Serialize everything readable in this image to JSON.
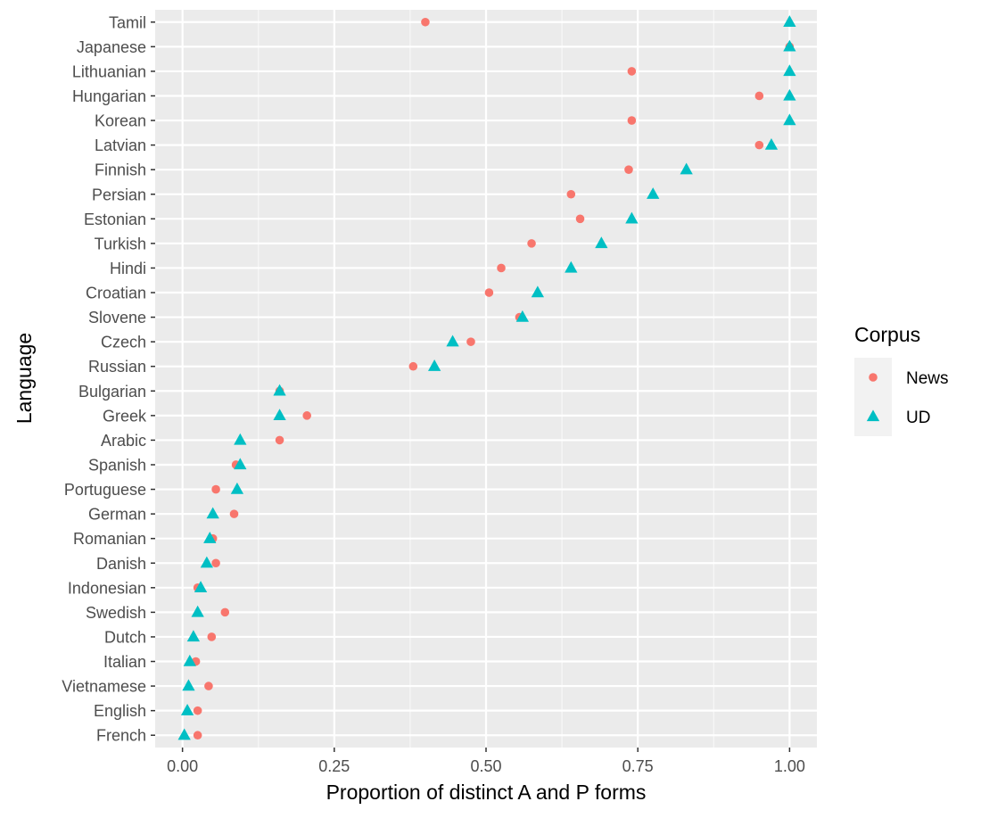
{
  "chart_data": {
    "type": "scatter",
    "xlabel": "Proportion of distinct A and P forms",
    "ylabel": "Language",
    "xlim": [
      -0.045,
      1.045
    ],
    "x_ticks": [
      0,
      0.25,
      0.5,
      0.75,
      1
    ],
    "x_tick_labels": [
      "0.00",
      "0.25",
      "0.50",
      "0.75",
      "1.00"
    ],
    "grid": true,
    "legend": {
      "title": "Corpus",
      "position": "right"
    },
    "categories": [
      "Tamil",
      "Japanese",
      "Lithuanian",
      "Hungarian",
      "Korean",
      "Latvian",
      "Finnish",
      "Persian",
      "Estonian",
      "Turkish",
      "Hindi",
      "Croatian",
      "Slovene",
      "Czech",
      "Russian",
      "Bulgarian",
      "Greek",
      "Arabic",
      "Spanish",
      "Portuguese",
      "German",
      "Romanian",
      "Danish",
      "Indonesian",
      "Swedish",
      "Dutch",
      "Italian",
      "Vietnamese",
      "English",
      "French"
    ],
    "series": [
      {
        "name": "News",
        "color": "#F8766D",
        "shape": "circle",
        "values": [
          0.4,
          1.0,
          0.74,
          0.95,
          0.74,
          0.95,
          0.735,
          0.64,
          0.655,
          0.575,
          0.525,
          0.505,
          0.555,
          0.475,
          0.38,
          0.16,
          0.205,
          0.16,
          0.088,
          0.055,
          0.085,
          0.05,
          0.055,
          0.025,
          0.07,
          0.048,
          0.022,
          0.043,
          0.025,
          0.025
        ]
      },
      {
        "name": "UD",
        "color": "#00BFC4",
        "shape": "triangle",
        "values": [
          1.0,
          1.0,
          1.0,
          1.0,
          1.0,
          0.97,
          0.83,
          0.775,
          0.74,
          0.69,
          0.64,
          0.585,
          0.56,
          0.445,
          0.415,
          0.16,
          0.16,
          0.095,
          0.095,
          0.09,
          0.05,
          0.045,
          0.04,
          0.03,
          0.025,
          0.018,
          0.012,
          0.01,
          0.008,
          0.003
        ]
      }
    ]
  }
}
